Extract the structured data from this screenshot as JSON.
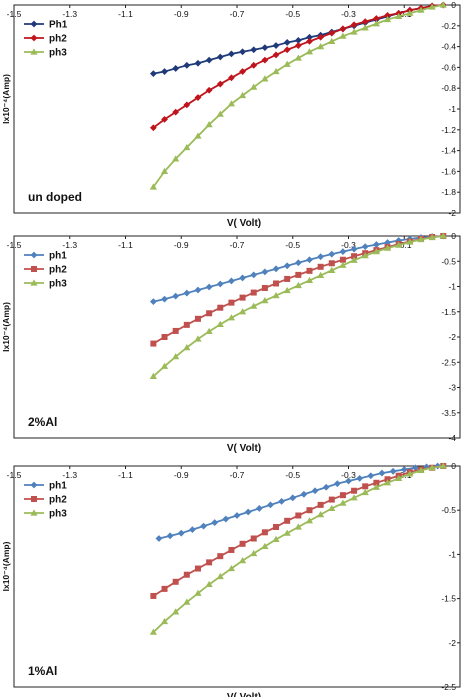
{
  "chart_data": [
    {
      "type": "line",
      "xlabel": "V( Volt)",
      "ylabel": "Ix10⁻⁴(Amp)",
      "annotation": "un doped",
      "x_ticks": [
        "-1.5",
        "-1.3",
        "-1.1",
        "-0.9",
        "-0.7",
        "-0.5",
        "-0.3",
        "-0.1"
      ],
      "y_ticks": [
        "0",
        "-0.2",
        "-0.4",
        "-0.6",
        "-0.8",
        "-1",
        "-1.2",
        "-1.4",
        "-1.6",
        "-1.8",
        "-2"
      ],
      "xlim": [
        -1.5,
        0.1
      ],
      "ylim": [
        -2,
        0
      ],
      "legend_position": "top-left",
      "series": [
        {
          "name": "Ph1",
          "color": "#1f3a7a",
          "marker": "diamond",
          "x": [
            -1.0,
            -0.96,
            -0.92,
            -0.88,
            -0.84,
            -0.8,
            -0.76,
            -0.72,
            -0.68,
            -0.64,
            -0.6,
            -0.56,
            -0.52,
            -0.48,
            -0.44,
            -0.4,
            -0.36,
            -0.32,
            -0.28,
            -0.24,
            -0.2,
            -0.16,
            -0.12,
            -0.08,
            -0.04,
            0.0,
            0.04
          ],
          "y": [
            -0.66,
            -0.64,
            -0.61,
            -0.58,
            -0.56,
            -0.53,
            -0.5,
            -0.47,
            -0.45,
            -0.43,
            -0.41,
            -0.39,
            -0.36,
            -0.34,
            -0.31,
            -0.29,
            -0.26,
            -0.23,
            -0.2,
            -0.17,
            -0.14,
            -0.11,
            -0.08,
            -0.05,
            -0.03,
            -0.01,
            0.0
          ]
        },
        {
          "name": "ph2",
          "color": "#c0141c",
          "marker": "diamond",
          "x": [
            -1.0,
            -0.96,
            -0.92,
            -0.88,
            -0.84,
            -0.8,
            -0.76,
            -0.72,
            -0.68,
            -0.64,
            -0.6,
            -0.56,
            -0.52,
            -0.48,
            -0.44,
            -0.4,
            -0.36,
            -0.32,
            -0.28,
            -0.24,
            -0.2,
            -0.16,
            -0.12,
            -0.08,
            -0.04,
            0.0,
            0.04
          ],
          "y": [
            -1.18,
            -1.1,
            -1.03,
            -0.96,
            -0.89,
            -0.82,
            -0.76,
            -0.7,
            -0.64,
            -0.58,
            -0.53,
            -0.48,
            -0.43,
            -0.39,
            -0.35,
            -0.31,
            -0.27,
            -0.23,
            -0.19,
            -0.16,
            -0.13,
            -0.1,
            -0.08,
            -0.05,
            -0.03,
            -0.01,
            0.0
          ]
        },
        {
          "name": "ph3",
          "color": "#9bbb59",
          "marker": "triangle",
          "x": [
            -1.0,
            -0.96,
            -0.92,
            -0.88,
            -0.84,
            -0.8,
            -0.76,
            -0.72,
            -0.68,
            -0.64,
            -0.6,
            -0.56,
            -0.52,
            -0.48,
            -0.44,
            -0.4,
            -0.36,
            -0.32,
            -0.28,
            -0.24,
            -0.2,
            -0.16,
            -0.12,
            -0.08,
            -0.04,
            0.0,
            0.04
          ],
          "y": [
            -1.75,
            -1.6,
            -1.48,
            -1.37,
            -1.26,
            -1.15,
            -1.05,
            -0.95,
            -0.87,
            -0.79,
            -0.71,
            -0.64,
            -0.57,
            -0.51,
            -0.45,
            -0.4,
            -0.35,
            -0.3,
            -0.26,
            -0.22,
            -0.18,
            -0.14,
            -0.11,
            -0.08,
            -0.05,
            -0.02,
            0.0
          ]
        }
      ]
    },
    {
      "type": "line",
      "xlabel": "V( Volt)",
      "ylabel": "Ix10⁻⁴(Amp)",
      "annotation": "2%Al",
      "x_ticks": [
        "-1.5",
        "-1.3",
        "-1.1",
        "-0.9",
        "-0.7",
        "-0.5",
        "-0.3",
        "-0.1"
      ],
      "y_ticks": [
        "0",
        "-0.5",
        "-1",
        "-1.5",
        "-2",
        "-2.5",
        "-3",
        "-3.5",
        "-4"
      ],
      "xlim": [
        -1.5,
        0.1
      ],
      "ylim": [
        -4,
        0
      ],
      "legend_position": "top-left",
      "series": [
        {
          "name": "ph1",
          "color": "#4f81bd",
          "marker": "diamond",
          "x": [
            -1.0,
            -0.96,
            -0.92,
            -0.88,
            -0.84,
            -0.8,
            -0.76,
            -0.72,
            -0.68,
            -0.64,
            -0.6,
            -0.56,
            -0.52,
            -0.48,
            -0.44,
            -0.4,
            -0.36,
            -0.32,
            -0.28,
            -0.24,
            -0.2,
            -0.16,
            -0.12,
            -0.08,
            -0.04,
            0.0,
            0.04
          ],
          "y": [
            -1.3,
            -1.25,
            -1.19,
            -1.13,
            -1.07,
            -1.01,
            -0.95,
            -0.89,
            -0.83,
            -0.77,
            -0.71,
            -0.65,
            -0.59,
            -0.53,
            -0.47,
            -0.41,
            -0.36,
            -0.31,
            -0.26,
            -0.21,
            -0.17,
            -0.13,
            -0.09,
            -0.06,
            -0.03,
            -0.01,
            0.0
          ]
        },
        {
          "name": "ph2",
          "color": "#c0504d",
          "marker": "square",
          "x": [
            -1.0,
            -0.96,
            -0.92,
            -0.88,
            -0.84,
            -0.8,
            -0.76,
            -0.72,
            -0.68,
            -0.64,
            -0.6,
            -0.56,
            -0.52,
            -0.48,
            -0.44,
            -0.4,
            -0.36,
            -0.32,
            -0.28,
            -0.24,
            -0.2,
            -0.16,
            -0.12,
            -0.08,
            -0.04,
            0.0,
            0.04
          ],
          "y": [
            -2.13,
            -2.0,
            -1.88,
            -1.76,
            -1.64,
            -1.53,
            -1.42,
            -1.32,
            -1.22,
            -1.12,
            -1.03,
            -0.94,
            -0.85,
            -0.77,
            -0.69,
            -0.61,
            -0.54,
            -0.47,
            -0.4,
            -0.34,
            -0.28,
            -0.22,
            -0.16,
            -0.11,
            -0.06,
            -0.02,
            0.0
          ]
        },
        {
          "name": "ph3",
          "color": "#9bbb59",
          "marker": "triangle",
          "x": [
            -1.0,
            -0.96,
            -0.92,
            -0.88,
            -0.84,
            -0.8,
            -0.76,
            -0.72,
            -0.68,
            -0.64,
            -0.6,
            -0.56,
            -0.52,
            -0.48,
            -0.44,
            -0.4,
            -0.36,
            -0.32,
            -0.28,
            -0.24,
            -0.2,
            -0.16,
            -0.12,
            -0.08,
            -0.04,
            0.0,
            0.04
          ],
          "y": [
            -2.78,
            -2.58,
            -2.39,
            -2.21,
            -2.04,
            -1.89,
            -1.75,
            -1.62,
            -1.5,
            -1.39,
            -1.28,
            -1.18,
            -1.08,
            -0.98,
            -0.88,
            -0.78,
            -0.68,
            -0.58,
            -0.48,
            -0.39,
            -0.31,
            -0.24,
            -0.18,
            -0.12,
            -0.07,
            -0.03,
            0.0
          ]
        }
      ]
    },
    {
      "type": "line",
      "xlabel": "V( Volt)",
      "ylabel": "Ix10⁻⁴(Amp)",
      "annotation": "1%Al",
      "x_ticks": [
        "-1.5",
        "-1.3",
        "-1.1",
        "-0.9",
        "-0.7",
        "-0.5",
        "-0.3",
        "-0.1"
      ],
      "y_ticks": [
        "0",
        "-0.5",
        "-1",
        "-1.5",
        "-2",
        "-2.5"
      ],
      "xlim": [
        -1.5,
        0.1
      ],
      "ylim": [
        -2.5,
        0
      ],
      "legend_position": "top-left",
      "series": [
        {
          "name": "ph1",
          "color": "#4f81bd",
          "marker": "diamond",
          "x": [
            -0.98,
            -0.94,
            -0.9,
            -0.86,
            -0.82,
            -0.78,
            -0.74,
            -0.7,
            -0.66,
            -0.62,
            -0.58,
            -0.54,
            -0.5,
            -0.46,
            -0.42,
            -0.38,
            -0.34,
            -0.3,
            -0.26,
            -0.22,
            -0.18,
            -0.14,
            -0.1,
            -0.06,
            -0.02,
            0.02
          ],
          "y": [
            -0.82,
            -0.79,
            -0.76,
            -0.72,
            -0.68,
            -0.64,
            -0.6,
            -0.56,
            -0.52,
            -0.48,
            -0.44,
            -0.4,
            -0.36,
            -0.32,
            -0.28,
            -0.24,
            -0.2,
            -0.17,
            -0.14,
            -0.11,
            -0.08,
            -0.06,
            -0.04,
            -0.02,
            -0.01,
            0.0
          ]
        },
        {
          "name": "ph2",
          "color": "#c0504d",
          "marker": "square",
          "x": [
            -1.0,
            -0.96,
            -0.92,
            -0.88,
            -0.84,
            -0.8,
            -0.76,
            -0.72,
            -0.68,
            -0.64,
            -0.6,
            -0.56,
            -0.52,
            -0.48,
            -0.44,
            -0.4,
            -0.36,
            -0.32,
            -0.28,
            -0.24,
            -0.2,
            -0.16,
            -0.12,
            -0.08,
            -0.04,
            0.0,
            0.04
          ],
          "y": [
            -1.47,
            -1.39,
            -1.31,
            -1.23,
            -1.16,
            -1.09,
            -1.02,
            -0.95,
            -0.88,
            -0.82,
            -0.75,
            -0.69,
            -0.62,
            -0.56,
            -0.5,
            -0.44,
            -0.38,
            -0.33,
            -0.28,
            -0.23,
            -0.19,
            -0.15,
            -0.11,
            -0.07,
            -0.04,
            -0.02,
            0.0
          ]
        },
        {
          "name": "ph3",
          "color": "#9bbb59",
          "marker": "triangle",
          "x": [
            -1.0,
            -0.96,
            -0.92,
            -0.88,
            -0.84,
            -0.8,
            -0.76,
            -0.72,
            -0.68,
            -0.64,
            -0.6,
            -0.56,
            -0.52,
            -0.48,
            -0.44,
            -0.4,
            -0.36,
            -0.32,
            -0.28,
            -0.24,
            -0.2,
            -0.16,
            -0.12,
            -0.08,
            -0.04,
            0.0,
            0.04
          ],
          "y": [
            -1.88,
            -1.76,
            -1.65,
            -1.54,
            -1.44,
            -1.34,
            -1.25,
            -1.16,
            -1.07,
            -0.99,
            -0.91,
            -0.83,
            -0.76,
            -0.69,
            -0.62,
            -0.55,
            -0.48,
            -0.42,
            -0.36,
            -0.3,
            -0.24,
            -0.19,
            -0.14,
            -0.09,
            -0.05,
            -0.02,
            0.0
          ]
        }
      ]
    }
  ]
}
